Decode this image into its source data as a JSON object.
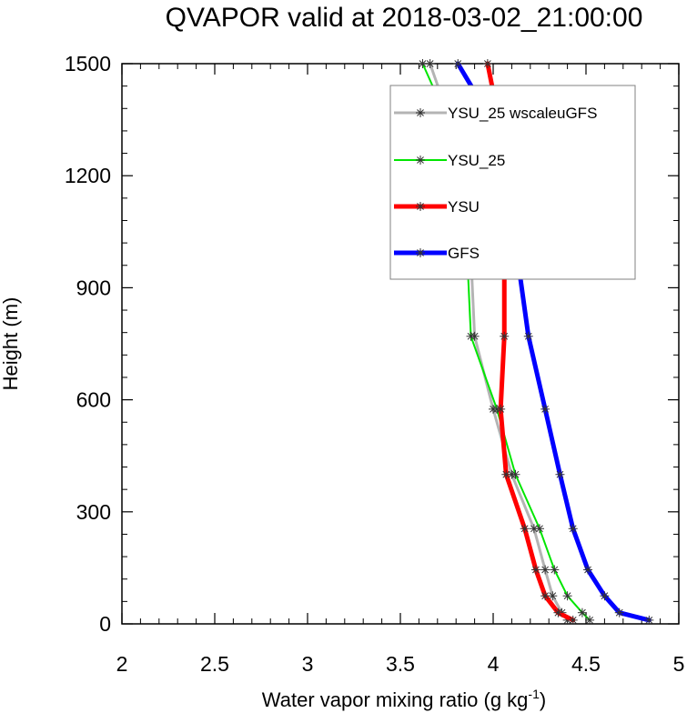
{
  "chart_data": {
    "type": "line",
    "title": "QVAPOR valid at 2018-03-02_21:00:00",
    "xlabel": "Water vapor mixing ratio (g kg",
    "xlabel_sup": "-1",
    "xlabel_end": ")",
    "ylabel": "Height (m)",
    "xlim": [
      2,
      5
    ],
    "ylim": [
      0,
      1500
    ],
    "x_ticks": [
      "2",
      "2.5",
      "3",
      "3.5",
      "4",
      "4.5",
      "5"
    ],
    "y_ticks": [
      "0",
      "300",
      "600",
      "900",
      "1200",
      "1500"
    ],
    "grid": false,
    "legend_position": "top-right",
    "series": [
      {
        "name": "YSU_25 wscaleuGFS",
        "color": "#b4b4b4",
        "width": 3,
        "x": [
          4.4,
          4.37,
          4.32,
          4.28,
          4.22,
          4.1,
          4.0,
          3.9,
          3.88,
          3.84,
          3.73,
          3.66
        ],
        "y": [
          10,
          30,
          75,
          145,
          255,
          400,
          575,
          770,
          985,
          1230,
          1400,
          1500
        ]
      },
      {
        "name": "YSU_25",
        "color": "#00e600",
        "width": 2,
        "x": [
          4.52,
          4.48,
          4.4,
          4.33,
          4.25,
          4.12,
          4.02,
          3.88,
          3.86,
          3.82,
          3.71,
          3.62
        ],
        "y": [
          10,
          30,
          75,
          145,
          255,
          400,
          575,
          770,
          985,
          1230,
          1400,
          1500
        ]
      },
      {
        "name": "YSU",
        "color": "#ff0000",
        "width": 5,
        "x": [
          4.43,
          4.35,
          4.28,
          4.23,
          4.17,
          4.07,
          4.04,
          4.06,
          4.06,
          4.04,
          4.01,
          3.97
        ],
        "y": [
          10,
          30,
          75,
          145,
          255,
          400,
          575,
          770,
          985,
          1230,
          1400,
          1500
        ]
      },
      {
        "name": "GFS",
        "color": "#0000ff",
        "width": 5,
        "x": [
          4.84,
          4.68,
          4.6,
          4.51,
          4.43,
          4.36,
          4.28,
          4.19,
          4.13,
          4.04,
          3.93,
          3.81
        ],
        "y": [
          10,
          30,
          75,
          145,
          255,
          400,
          575,
          770,
          985,
          1230,
          1400,
          1500
        ]
      }
    ]
  }
}
